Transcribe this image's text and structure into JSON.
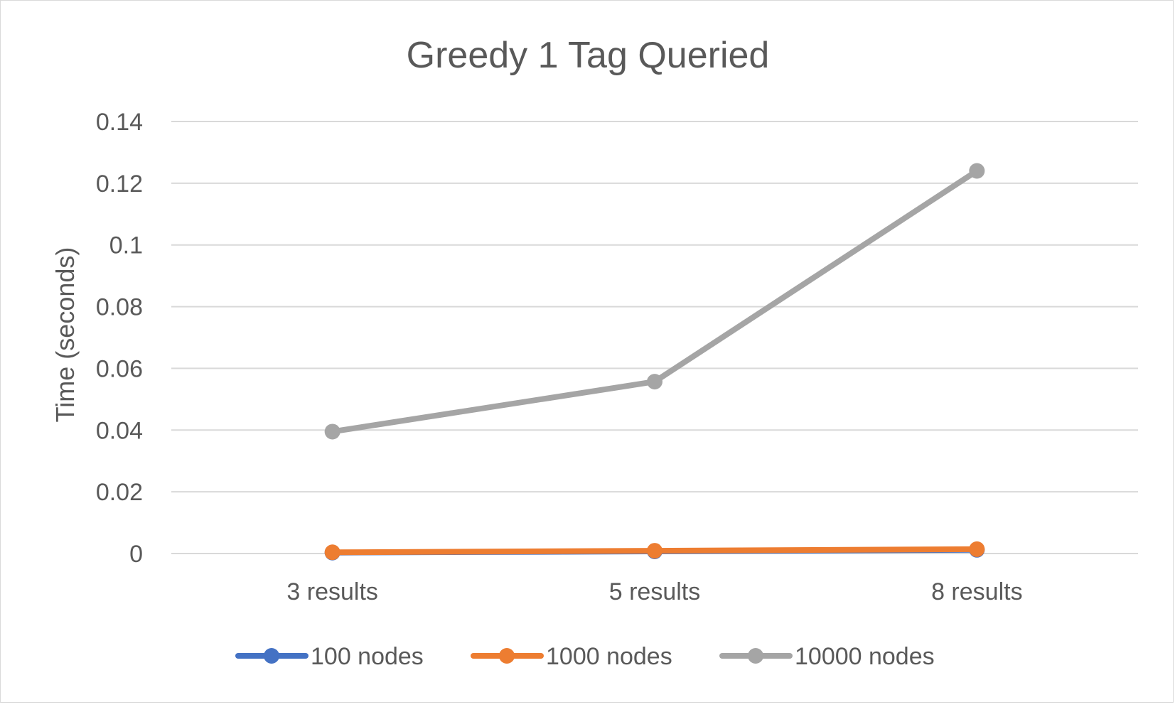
{
  "chart_data": {
    "type": "line",
    "title": "Greedy 1 Tag Queried",
    "xlabel": "",
    "ylabel": "Time (seconds)",
    "categories": [
      "3 results",
      "5 results",
      "8 results"
    ],
    "ylim": [
      0,
      0.14
    ],
    "yticks": [
      0,
      0.02,
      0.04,
      0.06,
      0.08,
      0.1,
      0.12,
      0.14
    ],
    "ytick_labels": [
      "0",
      "0.02",
      "0.04",
      "0.06",
      "0.08",
      "0.1",
      "0.12",
      "0.14"
    ],
    "grid": true,
    "legend_position": "bottom",
    "series": [
      {
        "name": "100 nodes",
        "color": "#4472c4",
        "values": [
          0.0003,
          0.0007,
          0.0012
        ]
      },
      {
        "name": "1000 nodes",
        "color": "#ed7d31",
        "values": [
          0.0004,
          0.0009,
          0.0014
        ]
      },
      {
        "name": "10000 nodes",
        "color": "#a5a5a5",
        "values": [
          0.0395,
          0.0557,
          0.124
        ]
      }
    ],
    "text_color": "#595959",
    "grid_color": "#d9d9d9"
  }
}
